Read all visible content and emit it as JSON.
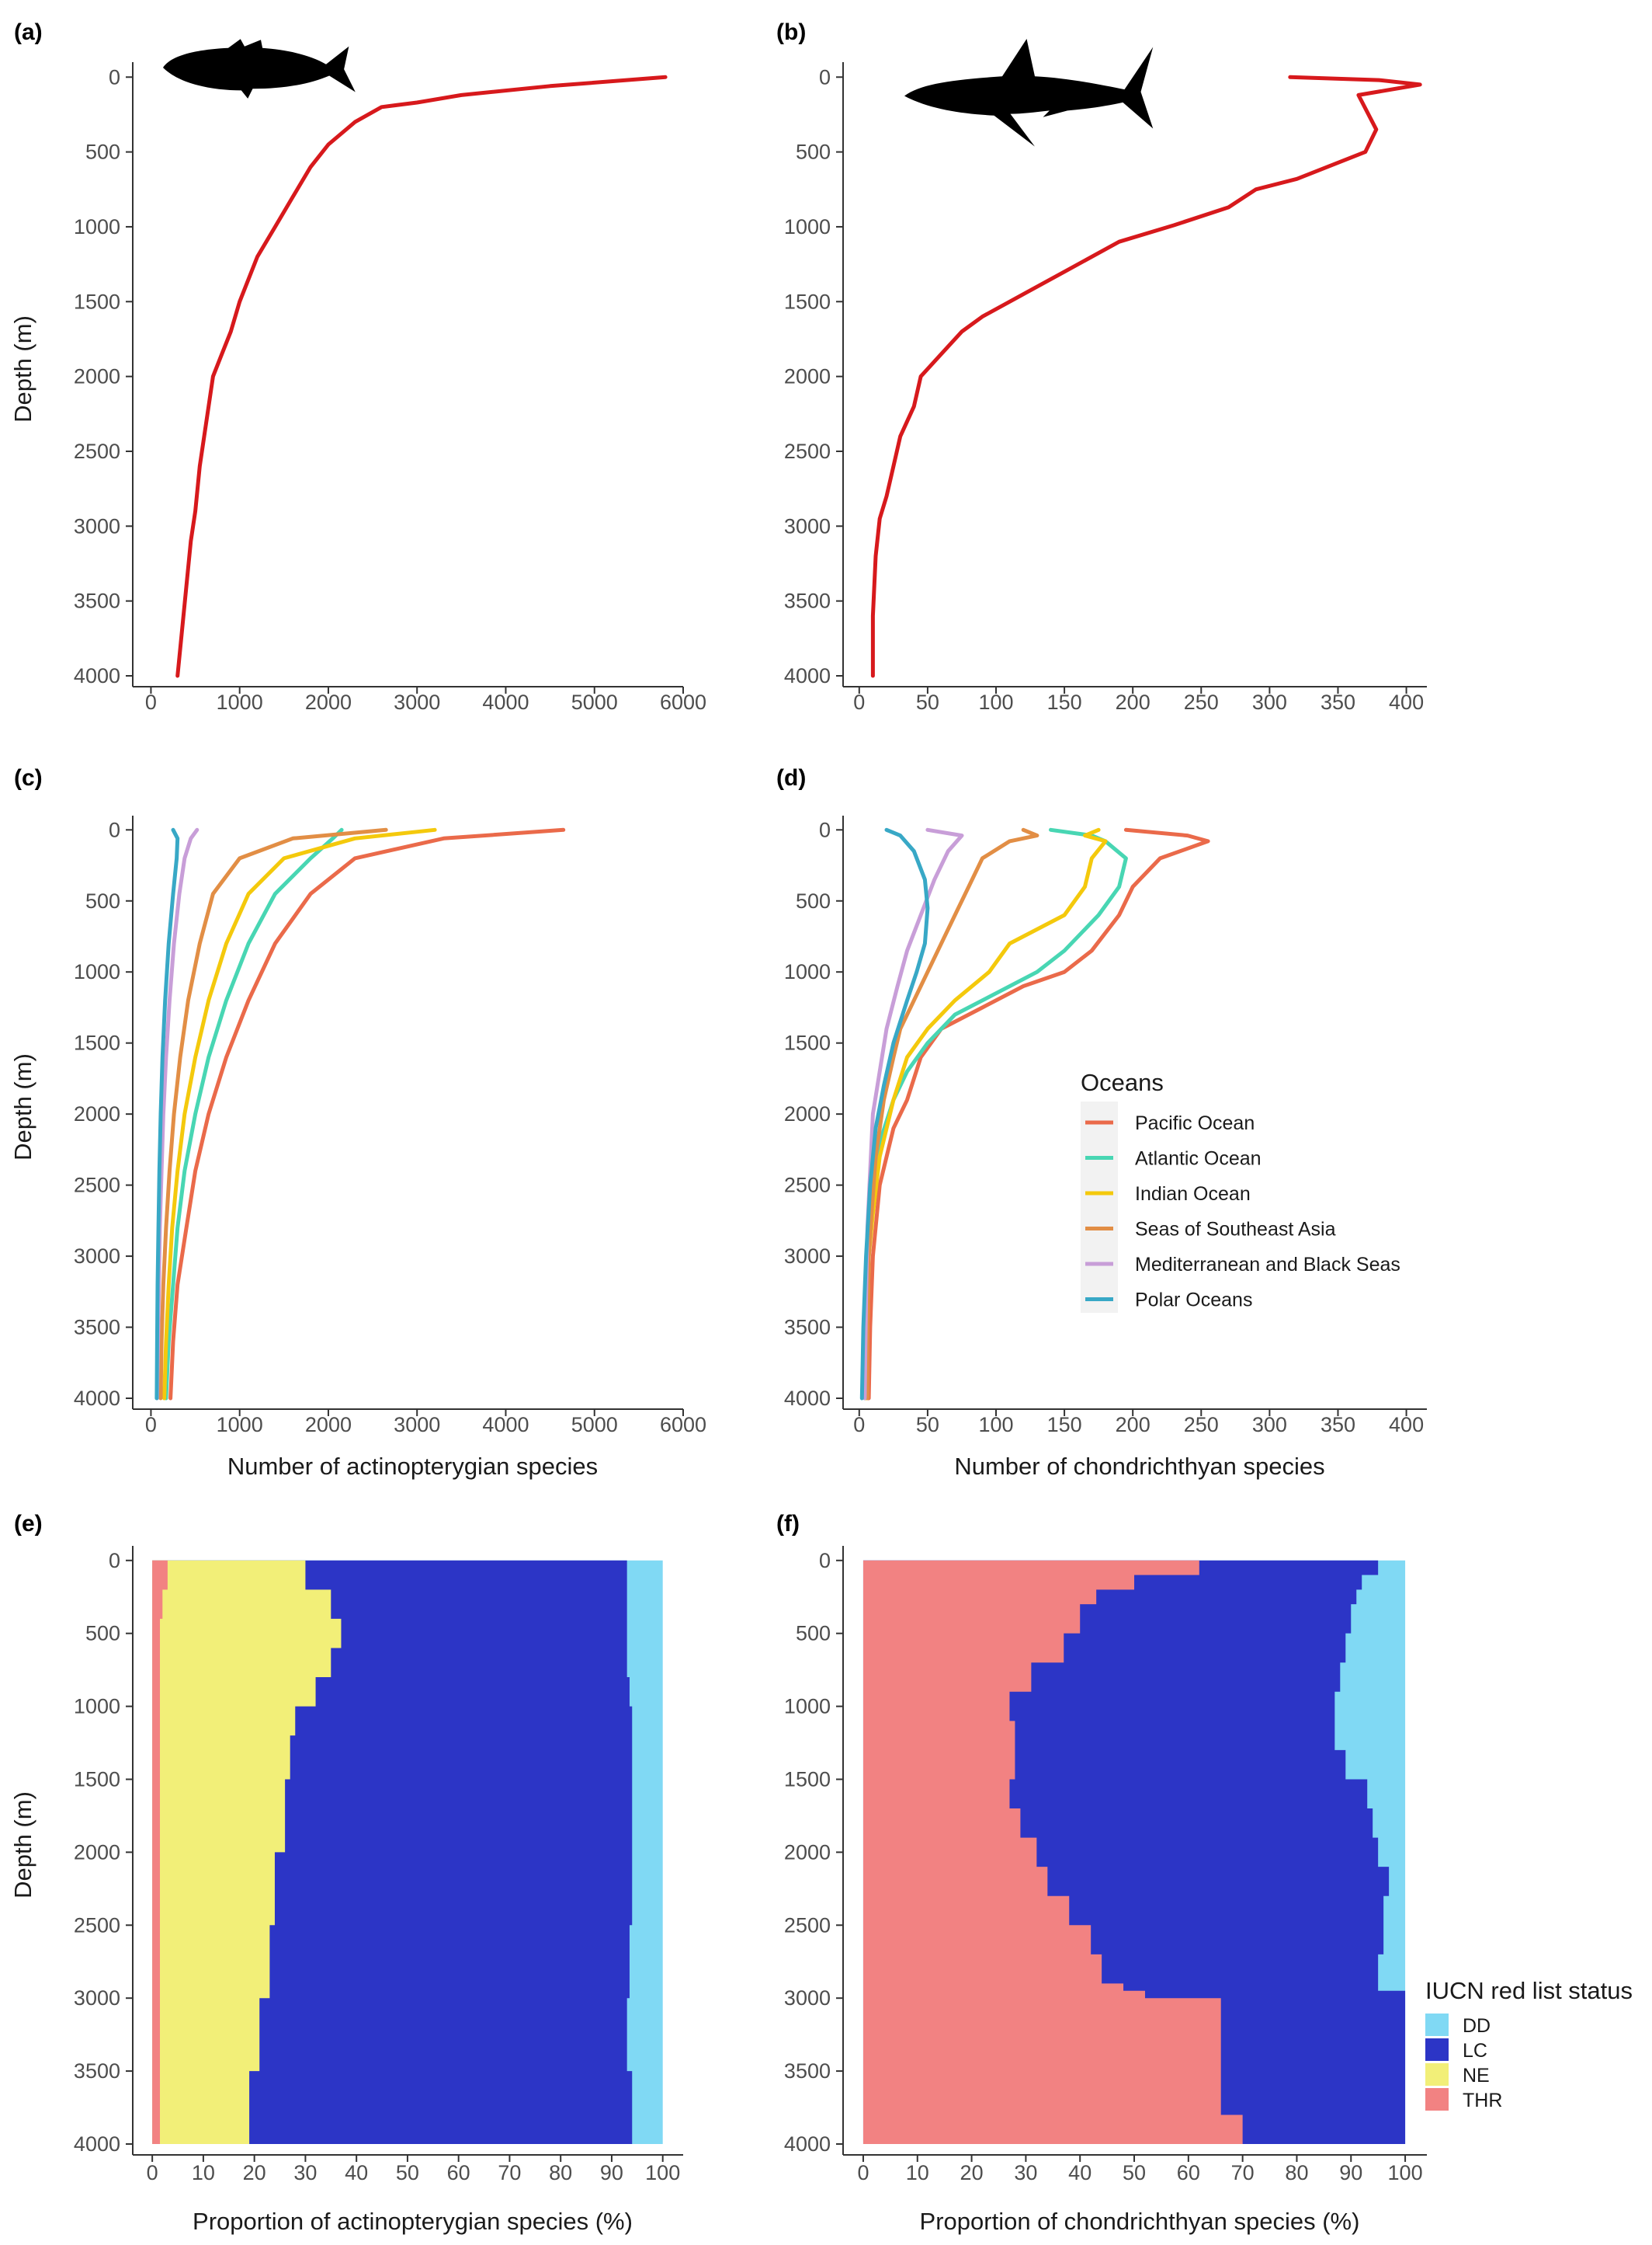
{
  "colors": {
    "curve": "#d7191c",
    "Pacific Ocean": "#ea6a4a",
    "Atlantic Ocean": "#48d6b3",
    "Indian Ocean": "#f4c90c",
    "Seas of Southeast Asia": "#e28e45",
    "Mediterranean and Black Seas": "#c89ed8",
    "Polar Oceans": "#38a8c6",
    "DD": "#80d9f4",
    "LC": "#2c35c6",
    "NE": "#f2ef78",
    "THR": "#f28282",
    "axis": "#333333",
    "silhouette": "#000000"
  },
  "chart_data": [
    {
      "id": "a",
      "panel_label": "(a)",
      "type": "line",
      "icon": "fish-silhouette-icon",
      "xlabel": "",
      "ylabel": "Depth (m)",
      "xlim": [
        -100,
        6000
      ],
      "ylim": [
        4000,
        -100
      ],
      "xticks": [
        0,
        1000,
        2000,
        3000,
        4000,
        5000,
        6000
      ],
      "yticks": [
        0,
        500,
        1000,
        1500,
        2000,
        2500,
        3000,
        3500,
        4000
      ],
      "series": [
        {
          "color_key": "curve",
          "x": [
            5800,
            4500,
            3500,
            3000,
            2600,
            2300,
            2000,
            1800,
            1600,
            1400,
            1200,
            1000,
            900,
            800,
            700,
            650,
            600,
            550,
            500,
            450,
            400,
            350,
            300
          ],
          "y": [
            0,
            60,
            120,
            170,
            200,
            300,
            450,
            600,
            800,
            1000,
            1200,
            1500,
            1700,
            1850,
            2000,
            2200,
            2400,
            2600,
            2900,
            3100,
            3400,
            3700,
            4000
          ]
        }
      ]
    },
    {
      "id": "b",
      "panel_label": "(b)",
      "type": "line",
      "icon": "shark-silhouette-icon",
      "xlabel": "",
      "ylabel": "",
      "xlim": [
        -5,
        415
      ],
      "ylim": [
        4000,
        -100
      ],
      "xticks": [
        0,
        50,
        100,
        150,
        200,
        250,
        300,
        350,
        400
      ],
      "yticks": [
        0,
        500,
        1000,
        1500,
        2000,
        2500,
        3000,
        3500,
        4000
      ],
      "series": [
        {
          "color_key": "curve",
          "x": [
            315,
            380,
            410,
            365,
            378,
            370,
            320,
            290,
            270,
            230,
            190,
            150,
            120,
            90,
            75,
            60,
            45,
            40,
            30,
            25,
            20,
            15,
            12,
            10,
            10
          ],
          "y": [
            0,
            20,
            50,
            120,
            350,
            500,
            680,
            750,
            870,
            990,
            1100,
            1300,
            1450,
            1600,
            1700,
            1850,
            2000,
            2200,
            2400,
            2600,
            2800,
            2950,
            3200,
            3600,
            4000
          ]
        }
      ]
    },
    {
      "id": "c",
      "panel_label": "(c)",
      "type": "line",
      "xlabel": "Number of actinopterygian species",
      "ylabel": "Depth (m)",
      "xlim": [
        -100,
        6000
      ],
      "ylim": [
        4000,
        -100
      ],
      "xticks": [
        0,
        1000,
        2000,
        3000,
        4000,
        5000,
        6000
      ],
      "yticks": [
        0,
        500,
        1000,
        1500,
        2000,
        2500,
        3000,
        3500,
        4000
      ],
      "legend_ref": "d",
      "series": [
        {
          "name": "Pacific Ocean",
          "x": [
            4650,
            3300,
            2300,
            1800,
            1400,
            1100,
            850,
            650,
            500,
            400,
            300,
            250,
            220
          ],
          "y": [
            0,
            60,
            200,
            450,
            800,
            1200,
            1600,
            2000,
            2400,
            2800,
            3200,
            3600,
            4000
          ]
        },
        {
          "name": "Atlantic Ocean",
          "x": [
            2150,
            2050,
            1800,
            1400,
            1100,
            850,
            650,
            500,
            380,
            300,
            250,
            200,
            170
          ],
          "y": [
            0,
            60,
            200,
            450,
            800,
            1200,
            1600,
            2000,
            2400,
            2800,
            3200,
            3600,
            4000
          ]
        },
        {
          "name": "Indian Ocean",
          "x": [
            3200,
            2300,
            1500,
            1100,
            850,
            650,
            500,
            380,
            300,
            240,
            200,
            170,
            150
          ],
          "y": [
            0,
            60,
            200,
            450,
            800,
            1200,
            1600,
            2000,
            2400,
            2800,
            3200,
            3600,
            4000
          ]
        },
        {
          "name": "Seas of Southeast Asia",
          "x": [
            2650,
            1600,
            1000,
            700,
            550,
            420,
            330,
            260,
            210,
            170,
            140,
            120,
            110
          ],
          "y": [
            0,
            60,
            200,
            450,
            800,
            1200,
            1600,
            2000,
            2400,
            2800,
            3200,
            3600,
            4000
          ]
        },
        {
          "name": "Mediterranean and Black Seas",
          "x": [
            520,
            450,
            380,
            320,
            260,
            210,
            170,
            140,
            120,
            100,
            90,
            80,
            70
          ],
          "y": [
            0,
            60,
            200,
            450,
            800,
            1200,
            1600,
            2000,
            2400,
            2800,
            3200,
            3600,
            4000
          ]
        },
        {
          "name": "Polar Oceans",
          "x": [
            250,
            300,
            290,
            250,
            200,
            160,
            130,
            110,
            95,
            85,
            75,
            70,
            65
          ],
          "y": [
            0,
            60,
            200,
            450,
            800,
            1200,
            1600,
            2000,
            2400,
            2800,
            3200,
            3600,
            4000
          ]
        }
      ]
    },
    {
      "id": "d",
      "panel_label": "(d)",
      "type": "line",
      "xlabel": "Number of chondrichthyan species",
      "ylabel": "",
      "xlim": [
        -5,
        415
      ],
      "ylim": [
        4000,
        -100
      ],
      "xticks": [
        0,
        50,
        100,
        150,
        200,
        250,
        300,
        350,
        400
      ],
      "yticks": [
        0,
        500,
        1000,
        1500,
        2000,
        2500,
        3000,
        3500,
        4000
      ],
      "legend": {
        "title": "Oceans",
        "position": "right"
      },
      "series": [
        {
          "name": "Pacific Ocean",
          "x": [
            195,
            240,
            255,
            220,
            200,
            190,
            170,
            150,
            120,
            90,
            60,
            45,
            35,
            25,
            15,
            10,
            8,
            7
          ],
          "y": [
            0,
            40,
            80,
            200,
            400,
            600,
            850,
            1000,
            1100,
            1250,
            1400,
            1600,
            1900,
            2100,
            2500,
            3000,
            3500,
            4000
          ]
        },
        {
          "name": "Atlantic Ocean",
          "x": [
            140,
            170,
            180,
            195,
            190,
            175,
            150,
            130,
            100,
            70,
            50,
            35,
            25,
            15,
            10,
            7,
            5,
            4
          ],
          "y": [
            0,
            40,
            80,
            200,
            400,
            600,
            850,
            1000,
            1150,
            1300,
            1500,
            1700,
            1900,
            2200,
            2600,
            3000,
            3500,
            4000
          ]
        },
        {
          "name": "Indian Ocean",
          "x": [
            175,
            165,
            180,
            170,
            165,
            150,
            110,
            95,
            70,
            50,
            35,
            25,
            15,
            10,
            7,
            6,
            5
          ],
          "y": [
            0,
            40,
            80,
            200,
            400,
            600,
            800,
            1000,
            1200,
            1400,
            1600,
            1900,
            2300,
            2700,
            3000,
            3500,
            4000
          ]
        },
        {
          "name": "Seas of Southeast Asia",
          "x": [
            120,
            130,
            110,
            90,
            80,
            70,
            60,
            50,
            40,
            30,
            25,
            18,
            12,
            9,
            7,
            6,
            6
          ],
          "y": [
            0,
            40,
            80,
            200,
            400,
            600,
            800,
            1000,
            1200,
            1400,
            1600,
            1900,
            2300,
            2700,
            3000,
            3500,
            4000
          ]
        },
        {
          "name": "Mediterranean and Black Seas",
          "x": [
            50,
            75,
            65,
            55,
            45,
            35,
            28,
            20,
            15,
            10,
            8,
            6,
            5,
            4
          ],
          "y": [
            0,
            40,
            150,
            350,
            600,
            850,
            1100,
            1400,
            1700,
            2000,
            2400,
            2800,
            3300,
            4000
          ]
        },
        {
          "name": "Polar Oceans",
          "x": [
            20,
            30,
            40,
            48,
            50,
            48,
            42,
            35,
            25,
            18,
            12,
            8,
            5,
            3,
            2
          ],
          "y": [
            0,
            40,
            150,
            350,
            550,
            800,
            1000,
            1200,
            1500,
            1800,
            2100,
            2500,
            3000,
            3500,
            4000
          ]
        }
      ]
    },
    {
      "id": "e",
      "panel_label": "(e)",
      "type": "area",
      "xlabel": "Proportion of actinopterygian species (%)",
      "ylabel": "Depth (m)",
      "xlim": [
        -2,
        104
      ],
      "ylim": [
        4000,
        -100
      ],
      "xticks": [
        0,
        10,
        20,
        30,
        40,
        50,
        60,
        70,
        80,
        90,
        100
      ],
      "yticks": [
        0,
        500,
        1000,
        1500,
        2000,
        2500,
        3000,
        3500,
        4000
      ],
      "legend_ref": "f",
      "depth": [
        0,
        200,
        400,
        600,
        800,
        1000,
        1200,
        1500,
        2000,
        2500,
        3000,
        3500,
        4000
      ],
      "cumulative_boundaries": {
        "THR": [
          3,
          2,
          1.5,
          1.5,
          1.5,
          1.5,
          1.5,
          1.5,
          1.5,
          1.5,
          1.5,
          1.5,
          1.5
        ],
        "NE": [
          30,
          35,
          37,
          35,
          32,
          28,
          27,
          26,
          24,
          23,
          21,
          19,
          16
        ],
        "LC": [
          93,
          93,
          93,
          93,
          93.5,
          94,
          94,
          94,
          94,
          93.5,
          93,
          94,
          95
        ],
        "DD": [
          100,
          100,
          100,
          100,
          100,
          100,
          100,
          100,
          100,
          100,
          100,
          100,
          100
        ]
      }
    },
    {
      "id": "f",
      "panel_label": "(f)",
      "type": "area",
      "xlabel": "Proportion of chondrichthyan species (%)",
      "ylabel": "",
      "xlim": [
        -2,
        104
      ],
      "ylim": [
        4000,
        -100
      ],
      "xticks": [
        0,
        10,
        20,
        30,
        40,
        50,
        60,
        70,
        80,
        90,
        100
      ],
      "yticks": [
        0,
        500,
        1000,
        1500,
        2000,
        2500,
        3000,
        3500,
        4000
      ],
      "legend": {
        "title": "IUCN red list status",
        "position": "right"
      },
      "depth": [
        0,
        100,
        200,
        300,
        500,
        700,
        900,
        1100,
        1300,
        1500,
        1700,
        1900,
        2100,
        2300,
        2500,
        2700,
        2900,
        2950,
        3000,
        3500,
        3700,
        3800,
        4000
      ],
      "cumulative_boundaries": {
        "THR": [
          62,
          50,
          43,
          40,
          37,
          31,
          27,
          28,
          28,
          27,
          29,
          32,
          34,
          38,
          42,
          44,
          48,
          52,
          66,
          66,
          66,
          70,
          70
        ],
        "LC": [
          95,
          92,
          91,
          90,
          89,
          88,
          87,
          87,
          89,
          93,
          94,
          95,
          97,
          96,
          96,
          95,
          95,
          100,
          100,
          100,
          100,
          100,
          100
        ],
        "DD": [
          100,
          100,
          100,
          100,
          100,
          100,
          100,
          100,
          100,
          100,
          100,
          100,
          100,
          100,
          100,
          100,
          100,
          100,
          100,
          100,
          100,
          100,
          100
        ]
      }
    }
  ],
  "legends": {
    "oceans": {
      "title": "Oceans",
      "items": [
        "Pacific Ocean",
        "Atlantic Ocean",
        "Indian Ocean",
        "Seas of Southeast Asia",
        "Mediterranean and Black Seas",
        "Polar Oceans"
      ]
    },
    "iucn": {
      "title": "IUCN red list status",
      "items": [
        "DD",
        "LC",
        "NE",
        "THR"
      ]
    }
  }
}
